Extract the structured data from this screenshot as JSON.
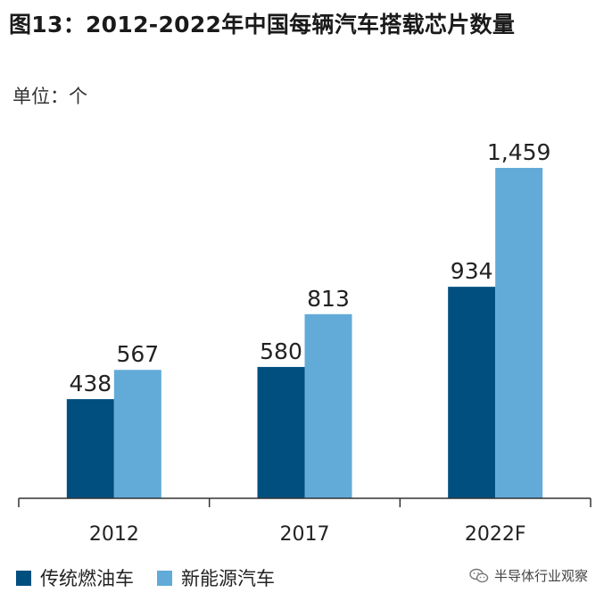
{
  "title": "图13：2012-2022年中国每辆汽车搭载芯片数量",
  "unit_label": "单位：个",
  "legend": [
    {
      "label": "传统燃油车",
      "color": "#004f7f"
    },
    {
      "label": "新能源汽车",
      "color": "#62abd8"
    }
  ],
  "watermark": "半导体行业观察",
  "chart_data": {
    "type": "bar",
    "categories": [
      "2012",
      "2017",
      "2022F"
    ],
    "series": [
      {
        "name": "传统燃油车",
        "values": [
          438,
          580,
          934
        ],
        "labels": [
          "438",
          "580",
          "934"
        ],
        "color": "#004f7f"
      },
      {
        "name": "新能源汽车",
        "values": [
          567,
          813,
          1459
        ],
        "labels": [
          "567",
          "813",
          "1,459"
        ],
        "color": "#62abd8"
      }
    ],
    "ylim": [
      0,
      1459
    ],
    "grid": false,
    "legend_position": "bottom-left"
  }
}
